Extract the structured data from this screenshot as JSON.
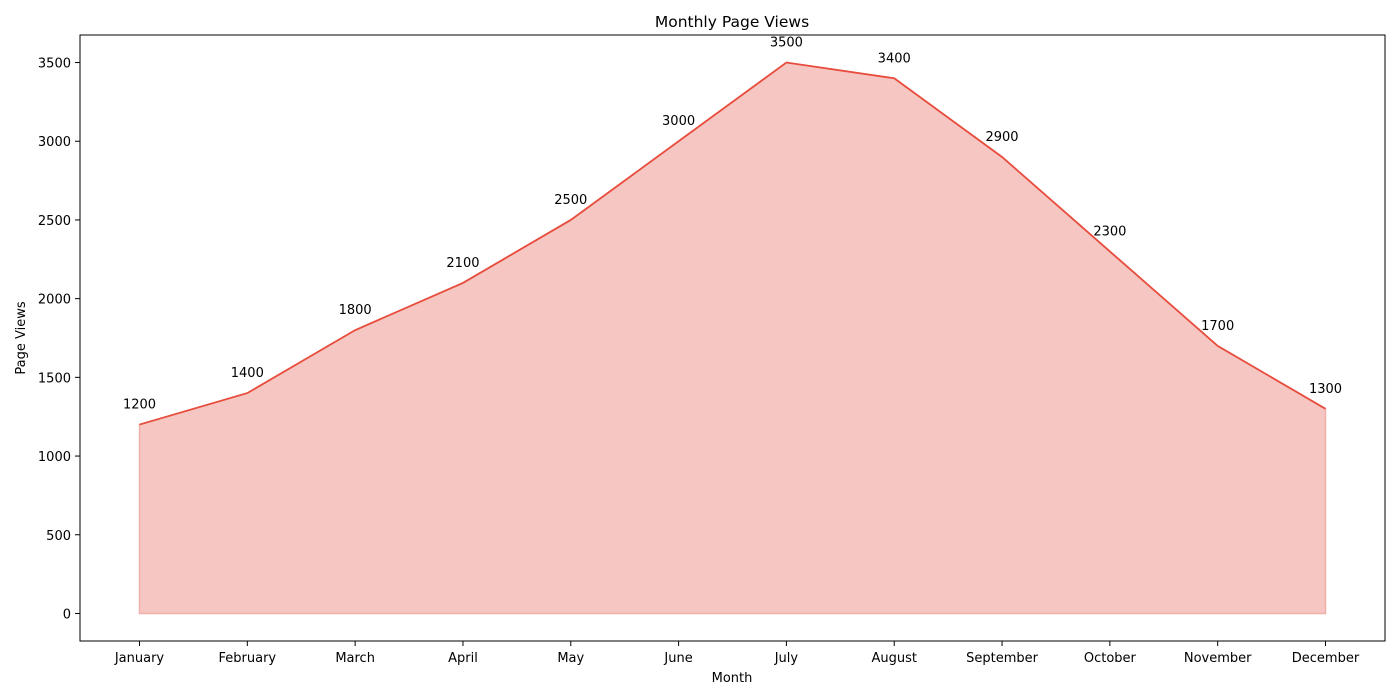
{
  "chart_data": {
    "type": "area",
    "title": "Monthly Page Views",
    "xlabel": "Month",
    "ylabel": "Page Views",
    "categories": [
      "January",
      "February",
      "March",
      "April",
      "May",
      "June",
      "July",
      "August",
      "September",
      "October",
      "November",
      "December"
    ],
    "values": [
      1200,
      1400,
      1800,
      2100,
      2500,
      3000,
      3500,
      3400,
      2900,
      2300,
      1700,
      1300
    ],
    "yticks": [
      0,
      500,
      1000,
      1500,
      2000,
      2500,
      3000,
      3500
    ],
    "ylim": [
      -175,
      3675
    ],
    "grid": false,
    "colors": {
      "line": "#e74c3c",
      "fill": "#f5c6c2"
    }
  }
}
